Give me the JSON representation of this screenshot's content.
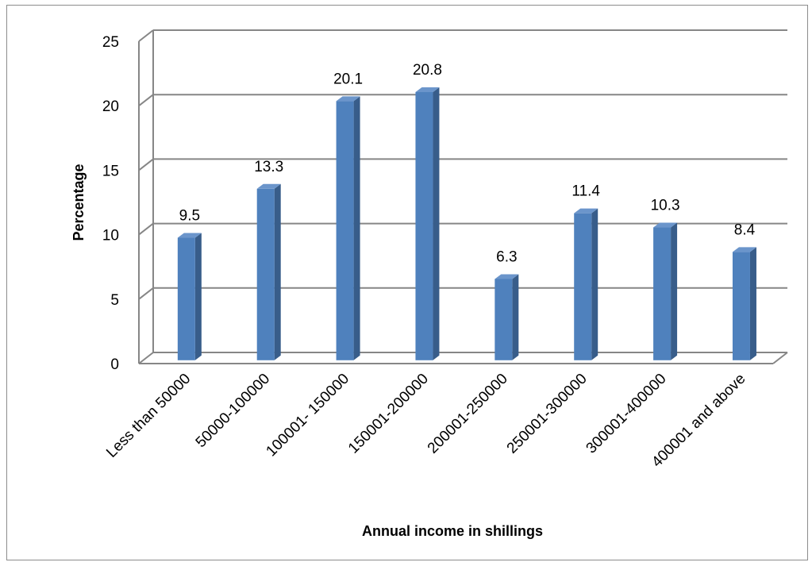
{
  "chart_data": {
    "type": "bar",
    "style": "3d-column",
    "title": "",
    "xlabel": "Annual income in shillings",
    "ylabel": "Percentage",
    "categories": [
      "Less than 50000",
      "50000-100000",
      "100001- 150000",
      "150001-200000",
      "200001-250000",
      "250001-300000",
      "300001-400000",
      "400001 and above"
    ],
    "values": [
      9.5,
      13.3,
      20.1,
      20.8,
      6.3,
      11.4,
      10.3,
      8.4
    ],
    "data_labels": [
      "9.5",
      "13.3",
      "20.1",
      "20.8",
      "6.3",
      "11.4",
      "10.3",
      "8.4"
    ],
    "ylim": [
      0,
      25
    ],
    "yticks": [
      0,
      5,
      10,
      15,
      20,
      25
    ],
    "ytick_labels": [
      "0",
      "5",
      "10",
      "15",
      "20",
      "25"
    ],
    "grid": true,
    "legend": "none",
    "colors": {
      "bar_front": "#4f81bd",
      "bar_side": "#385d8a",
      "bar_top": "#6b95cb",
      "gridline": "#868686",
      "frame": "#8c8c8c"
    }
  }
}
